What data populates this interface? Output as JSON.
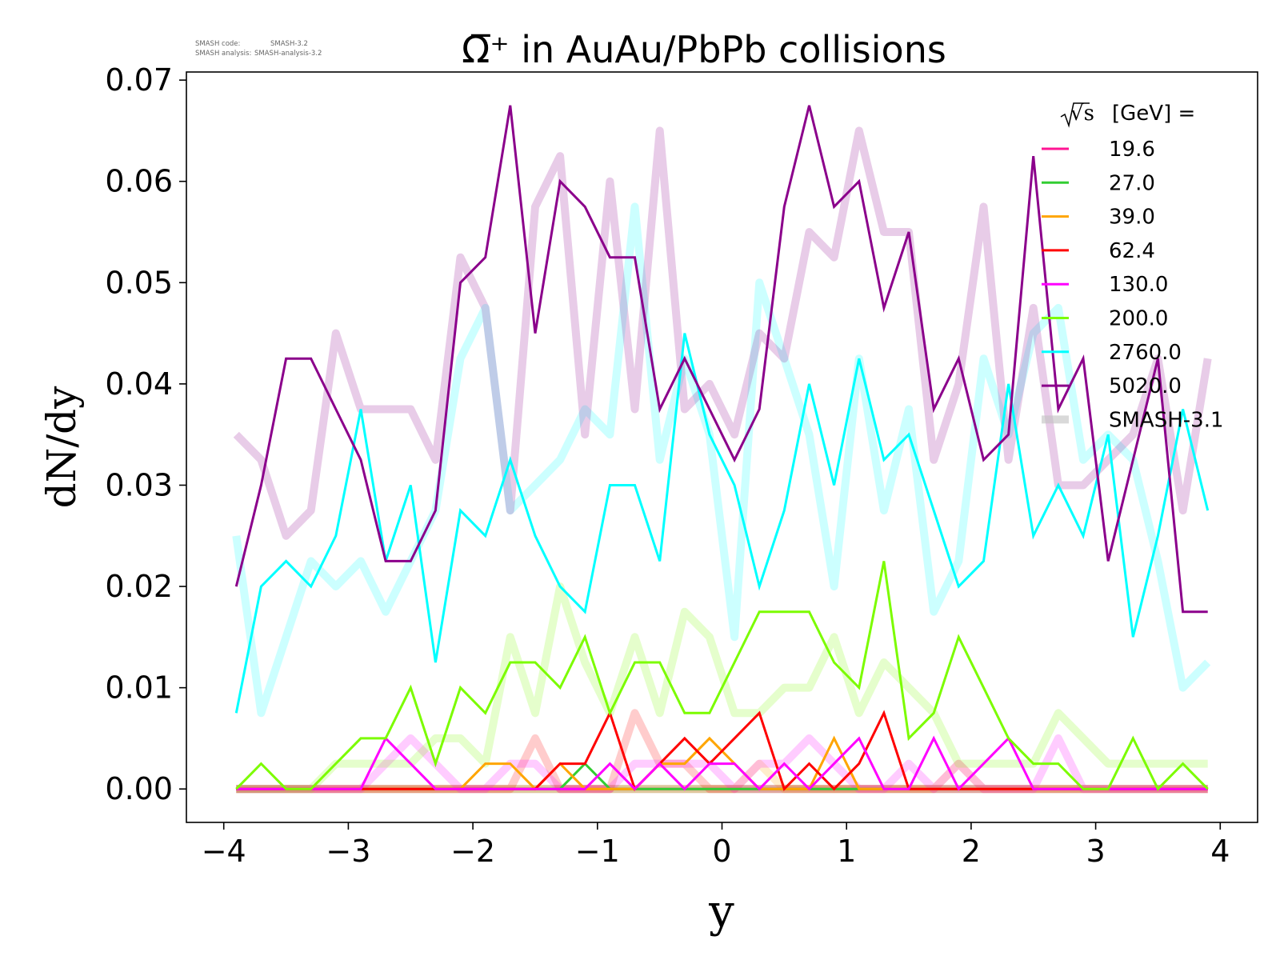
{
  "meta_text": {
    "code_label": "SMASH code:",
    "code_value": "SMASH-3.2",
    "analysis_label": "SMASH analysis:",
    "analysis_value": "SMASH-analysis-3.2"
  },
  "chart_data": {
    "type": "line",
    "title": "Ω̅⁺ in AuAu/PbPb collisions",
    "xlabel": "y",
    "ylabel": "dN/dy",
    "xlim": [
      -4.3,
      4.3
    ],
    "ylim": [
      -0.0033,
      0.0708
    ],
    "xticks": [
      -4,
      -3,
      -2,
      -1,
      0,
      1,
      2,
      3,
      4
    ],
    "xtick_labels": [
      "−4",
      "−3",
      "−2",
      "−1",
      "0",
      "1",
      "2",
      "3",
      "4"
    ],
    "yticks": [
      0.0,
      0.01,
      0.02,
      0.03,
      0.04,
      0.05,
      0.06,
      0.07
    ],
    "ytick_labels": [
      "0.00",
      "0.01",
      "0.02",
      "0.03",
      "0.04",
      "0.05",
      "0.06",
      "0.07"
    ],
    "grid": false,
    "legend_position": "top-right",
    "legend_title": "[GeV] =",
    "legend_title_symbol": "√s",
    "x": [
      -3.9,
      -3.7,
      -3.5,
      -3.3,
      -3.1,
      -2.9,
      -2.7,
      -2.5,
      -2.3,
      -2.1,
      -1.9,
      -1.7,
      -1.5,
      -1.3,
      -1.1,
      -0.9,
      -0.7,
      -0.5,
      -0.3,
      -0.1,
      0.1,
      0.3,
      0.5,
      0.7,
      0.9,
      1.1,
      1.3,
      1.5,
      1.7,
      1.9,
      2.1,
      2.3,
      2.5,
      2.7,
      2.9,
      3.1,
      3.3,
      3.5,
      3.7,
      3.9
    ],
    "series": [
      {
        "name": "19.6",
        "color": "#ff1493",
        "values": [
          0,
          0,
          0,
          0,
          0,
          0,
          0,
          0,
          0,
          0,
          0,
          0,
          0,
          0,
          0,
          0,
          0,
          0,
          0,
          0,
          0,
          0,
          0,
          0,
          0,
          0,
          0,
          0,
          0,
          0,
          0,
          0,
          0,
          0,
          0,
          0,
          0,
          0,
          0,
          0
        ]
      },
      {
        "name": "27.0",
        "color": "#32cd32",
        "values": [
          0,
          0,
          0,
          0,
          0,
          0,
          0,
          0,
          0,
          0,
          0,
          0,
          0,
          0,
          0.0025,
          0,
          0,
          0,
          0,
          0,
          0,
          0,
          0,
          0,
          0,
          0,
          0,
          0,
          0,
          0,
          0,
          0,
          0,
          0,
          0,
          0,
          0,
          0,
          0,
          0
        ]
      },
      {
        "name": "39.0",
        "color": "#ffa500",
        "values": [
          0,
          0,
          0,
          0,
          0,
          0,
          0,
          0,
          0,
          0,
          0.0025,
          0.0025,
          0,
          0.0025,
          0,
          0,
          0,
          0.0025,
          0.0025,
          0.005,
          0.0025,
          0,
          0,
          0,
          0.005,
          0,
          0,
          0,
          0,
          0,
          0,
          0,
          0,
          0,
          0,
          0,
          0,
          0,
          0,
          0
        ]
      },
      {
        "name": "62.4",
        "color": "#ff0000",
        "values": [
          0,
          0,
          0,
          0,
          0,
          0,
          0,
          0,
          0,
          0,
          0,
          0,
          0,
          0.0025,
          0.0025,
          0.0075,
          0,
          0.0025,
          0.005,
          0.0025,
          0.005,
          0.0075,
          0,
          0.0025,
          0,
          0.0025,
          0.0075,
          0,
          0,
          0,
          0,
          0,
          0,
          0,
          0,
          0,
          0,
          0,
          0,
          0
        ]
      },
      {
        "name": "130.0",
        "color": "#ff00ff",
        "values": [
          0,
          0,
          0,
          0,
          0,
          0,
          0.005,
          0.0025,
          0,
          0,
          0,
          0,
          0,
          0,
          0,
          0.0025,
          0,
          0.0025,
          0,
          0.0025,
          0.0025,
          0,
          0.0025,
          0,
          0.0025,
          0.005,
          0,
          0,
          0.005,
          0,
          0.0025,
          0.005,
          0,
          0,
          0,
          0,
          0,
          0,
          0,
          0
        ]
      },
      {
        "name": "200.0",
        "color": "#7cfc00",
        "values": [
          0,
          0.0025,
          0,
          0,
          0.0025,
          0.005,
          0.005,
          0.01,
          0.0025,
          0.01,
          0.0075,
          0.0125,
          0.0125,
          0.01,
          0.015,
          0.0075,
          0.0125,
          0.0125,
          0.0075,
          0.0075,
          0.0125,
          0.0175,
          0.0175,
          0.0175,
          0.0125,
          0.01,
          0.0225,
          0.005,
          0.0075,
          0.015,
          0.01,
          0.005,
          0.0025,
          0.0025,
          0,
          0,
          0.005,
          0,
          0.0025,
          0
        ]
      },
      {
        "name": "2760.0",
        "color": "#00ffff",
        "values": [
          0.0075,
          0.02,
          0.0225,
          0.02,
          0.025,
          0.0375,
          0.0225,
          0.03,
          0.0125,
          0.0275,
          0.025,
          0.0325,
          0.025,
          0.02,
          0.0175,
          0.03,
          0.03,
          0.0225,
          0.045,
          0.035,
          0.03,
          0.02,
          0.0275,
          0.04,
          0.03,
          0.0425,
          0.0325,
          0.035,
          0.0275,
          0.02,
          0.0225,
          0.04,
          0.025,
          0.03,
          0.025,
          0.035,
          0.015,
          0.025,
          0.0375,
          0.0275
        ]
      },
      {
        "name": "5020.0",
        "color": "#8b008b",
        "values": [
          0.02,
          0.03,
          0.0425,
          0.0425,
          0.0375,
          0.0325,
          0.0225,
          0.0225,
          0.0275,
          0.05,
          0.0525,
          0.0675,
          0.045,
          0.06,
          0.0575,
          0.0525,
          0.0525,
          0.0375,
          0.0425,
          0.0375,
          0.0325,
          0.0375,
          0.0575,
          0.0675,
          0.0575,
          0.06,
          0.0475,
          0.055,
          0.0375,
          0.0425,
          0.0325,
          0.035,
          0.0625,
          0.0375,
          0.0425,
          0.0225,
          0.0325,
          0.0425,
          0.0175,
          0.0175
        ]
      },
      {
        "name": "SMASH-3.1",
        "color": "#c0c0c0",
        "reference": [
          {
            "of": "19.6",
            "color": "#ff1493",
            "values": [
              0,
              0,
              0,
              0,
              0,
              0,
              0,
              0,
              0,
              0,
              0,
              0,
              0,
              0,
              0,
              0,
              0,
              0,
              0,
              0,
              0,
              0,
              0,
              0,
              0,
              0,
              0,
              0,
              0,
              0,
              0,
              0,
              0,
              0,
              0,
              0,
              0,
              0,
              0,
              0
            ]
          },
          {
            "of": "27.0",
            "color": "#32cd32",
            "values": [
              0,
              0,
              0,
              0,
              0,
              0,
              0,
              0,
              0,
              0,
              0,
              0,
              0,
              0,
              0,
              0,
              0,
              0,
              0,
              0,
              0,
              0,
              0,
              0,
              0,
              0,
              0,
              0,
              0,
              0,
              0,
              0,
              0,
              0,
              0,
              0,
              0,
              0,
              0,
              0
            ]
          },
          {
            "of": "39.0",
            "color": "#ffa500",
            "values": [
              0,
              0,
              0,
              0,
              0,
              0,
              0,
              0,
              0,
              0,
              0,
              0,
              0,
              0,
              0,
              0,
              0,
              0,
              0,
              0,
              0,
              0.0025,
              0,
              0,
              0,
              0,
              0,
              0,
              0,
              0.0025,
              0,
              0,
              0,
              0,
              0,
              0,
              0,
              0,
              0,
              0
            ]
          },
          {
            "of": "62.4",
            "color": "#ff0000",
            "values": [
              0,
              0,
              0,
              0,
              0,
              0,
              0,
              0,
              0,
              0,
              0,
              0,
              0.005,
              0,
              0,
              0,
              0.0075,
              0.0025,
              0.0025,
              0,
              0,
              0,
              0,
              0,
              0,
              0,
              0,
              0,
              0,
              0,
              0,
              0,
              0,
              0,
              0,
              0,
              0,
              0,
              0,
              0
            ]
          },
          {
            "of": "130.0",
            "color": "#ff00ff",
            "values": [
              0,
              0,
              0,
              0,
              0,
              0,
              0.0025,
              0.005,
              0.0025,
              0,
              0,
              0.0025,
              0.0025,
              0,
              0,
              0,
              0.0025,
              0.0025,
              0.0025,
              0.0025,
              0,
              0.0025,
              0.0025,
              0.005,
              0.0025,
              0,
              0,
              0.0025,
              0,
              0.0025,
              0,
              0,
              0,
              0.005,
              0,
              0,
              0,
              0,
              0,
              0
            ]
          },
          {
            "of": "200.0",
            "color": "#7cfc00",
            "values": [
              0,
              0,
              0,
              0,
              0.0025,
              0.0025,
              0.0025,
              0.0025,
              0.005,
              0.005,
              0.0025,
              0.015,
              0.0075,
              0.02,
              0.0125,
              0.0075,
              0.015,
              0.0075,
              0.0175,
              0.015,
              0.0075,
              0.0075,
              0.01,
              0.01,
              0.015,
              0.0075,
              0.0125,
              0.01,
              0.0075,
              0.0025,
              0.0025,
              0.0025,
              0.0025,
              0.0075,
              0.005,
              0.0025,
              0.0025,
              0.0025,
              0.0025,
              0.0025
            ]
          },
          {
            "of": "2760.0",
            "color": "#00ffff",
            "values": [
              0.025,
              0.0075,
              0.015,
              0.0225,
              0.02,
              0.0225,
              0.0175,
              0.0225,
              0.0275,
              0.0425,
              0.0475,
              0.0275,
              0.03,
              0.0325,
              0.0375,
              0.035,
              0.0575,
              0.0325,
              0.0425,
              0.035,
              0.015,
              0.05,
              0.0425,
              0.035,
              0.02,
              0.0425,
              0.0275,
              0.0375,
              0.0175,
              0.0225,
              0.0425,
              0.035,
              0.045,
              0.0475,
              0.0325,
              0.035,
              0.0325,
              0.0225,
              0.01,
              0.0125
            ]
          },
          {
            "of": "5020.0",
            "color": "#8b008b",
            "values": [
              0.035,
              0.0325,
              0.025,
              0.0275,
              0.045,
              0.0375,
              0.0375,
              0.0375,
              0.0325,
              0.0525,
              0.0475,
              0.0275,
              0.0575,
              0.0625,
              0.035,
              0.06,
              0.0375,
              0.065,
              0.0375,
              0.04,
              0.035,
              0.045,
              0.0425,
              0.055,
              0.0525,
              0.065,
              0.055,
              0.055,
              0.0325,
              0.04,
              0.0575,
              0.0325,
              0.0475,
              0.03,
              0.03,
              0.0325,
              0.035,
              0.0425,
              0.0275,
              0.0425
            ]
          }
        ]
      }
    ]
  }
}
